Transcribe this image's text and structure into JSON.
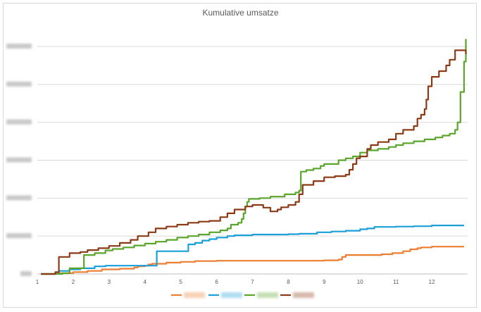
{
  "chart_data": {
    "type": "line",
    "title": "Kumulative umsatze",
    "xlabel": "",
    "ylabel": "",
    "xlim": [
      1,
      13
    ],
    "xticks": [
      "1",
      "2",
      "3",
      "4",
      "5",
      "6",
      "7",
      "8",
      "9",
      "10",
      "11",
      "12"
    ],
    "ylim": [
      0,
      6
    ],
    "ytick_count": 7,
    "grid": "horizontal",
    "legend_position": "bottom",
    "series": [
      {
        "color": "#ed7d31",
        "points": [
          [
            1.1,
            0
          ],
          [
            1.5,
            0.02
          ],
          [
            2.0,
            0.05
          ],
          [
            2.4,
            0.08
          ],
          [
            2.8,
            0.12
          ],
          [
            3.3,
            0.14
          ],
          [
            3.7,
            0.17
          ],
          [
            3.8,
            0.2
          ],
          [
            4.0,
            0.22
          ],
          [
            4.1,
            0.25
          ],
          [
            4.2,
            0.27
          ],
          [
            4.6,
            0.3
          ],
          [
            5.0,
            0.32
          ],
          [
            5.4,
            0.34
          ],
          [
            6.0,
            0.35
          ],
          [
            7.0,
            0.35
          ],
          [
            8.0,
            0.35
          ],
          [
            9.0,
            0.36
          ],
          [
            9.4,
            0.38
          ],
          [
            9.5,
            0.45
          ],
          [
            9.6,
            0.5
          ],
          [
            10.0,
            0.5
          ],
          [
            10.6,
            0.52
          ],
          [
            10.9,
            0.55
          ],
          [
            11.2,
            0.6
          ],
          [
            11.4,
            0.65
          ],
          [
            11.6,
            0.68
          ],
          [
            11.7,
            0.7
          ],
          [
            12.0,
            0.72
          ],
          [
            12.9,
            0.72
          ]
        ]
      },
      {
        "color": "#1a9fd8",
        "points": [
          [
            1.1,
            0
          ],
          [
            1.6,
            0.08
          ],
          [
            1.9,
            0.12
          ],
          [
            2.2,
            0.15
          ],
          [
            2.6,
            0.2
          ],
          [
            2.9,
            0.22
          ],
          [
            3.1,
            0.22
          ],
          [
            4.0,
            0.22
          ],
          [
            4.3,
            0.22
          ],
          [
            4.33,
            0.6
          ],
          [
            5.2,
            0.6
          ],
          [
            5.21,
            0.78
          ],
          [
            5.4,
            0.82
          ],
          [
            5.6,
            0.88
          ],
          [
            5.8,
            0.92
          ],
          [
            6.0,
            0.96
          ],
          [
            6.3,
            1.0
          ],
          [
            6.5,
            1.02
          ],
          [
            6.9,
            1.02
          ],
          [
            7.0,
            1.04
          ],
          [
            7.5,
            1.04
          ],
          [
            8.0,
            1.05
          ],
          [
            8.3,
            1.06
          ],
          [
            8.8,
            1.1
          ],
          [
            9.2,
            1.12
          ],
          [
            9.6,
            1.14
          ],
          [
            10.0,
            1.18
          ],
          [
            10.2,
            1.2
          ],
          [
            10.4,
            1.24
          ],
          [
            10.6,
            1.24
          ],
          [
            11.0,
            1.25
          ],
          [
            11.5,
            1.26
          ],
          [
            12.0,
            1.28
          ],
          [
            12.9,
            1.28
          ]
        ]
      },
      {
        "color": "#5ba52b",
        "points": [
          [
            1.1,
            0
          ],
          [
            1.7,
            0.02
          ],
          [
            1.9,
            0.15
          ],
          [
            2.3,
            0.5
          ],
          [
            2.6,
            0.55
          ],
          [
            2.9,
            0.62
          ],
          [
            3.1,
            0.66
          ],
          [
            3.4,
            0.7
          ],
          [
            3.7,
            0.75
          ],
          [
            4.0,
            0.8
          ],
          [
            4.3,
            0.85
          ],
          [
            4.6,
            0.9
          ],
          [
            4.9,
            0.96
          ],
          [
            5.2,
            1.0
          ],
          [
            5.5,
            1.04
          ],
          [
            5.8,
            1.1
          ],
          [
            6.1,
            1.15
          ],
          [
            6.3,
            1.2
          ],
          [
            6.4,
            1.3
          ],
          [
            6.6,
            1.35
          ],
          [
            6.7,
            1.45
          ],
          [
            6.75,
            1.6
          ],
          [
            6.8,
            1.78
          ],
          [
            6.85,
            1.9
          ],
          [
            6.9,
            1.98
          ],
          [
            7.2,
            2.0
          ],
          [
            7.5,
            2.04
          ],
          [
            7.9,
            2.1
          ],
          [
            8.2,
            2.15
          ],
          [
            8.3,
            2.2
          ],
          [
            8.35,
            2.7
          ],
          [
            8.5,
            2.74
          ],
          [
            8.7,
            2.78
          ],
          [
            8.9,
            2.85
          ],
          [
            9.0,
            2.9
          ],
          [
            9.4,
            3.0
          ],
          [
            9.6,
            3.05
          ],
          [
            9.8,
            3.1
          ],
          [
            10.0,
            3.2
          ],
          [
            10.2,
            3.26
          ],
          [
            10.5,
            3.3
          ],
          [
            10.8,
            3.35
          ],
          [
            11.0,
            3.4
          ],
          [
            11.2,
            3.45
          ],
          [
            11.5,
            3.5
          ],
          [
            11.8,
            3.55
          ],
          [
            12.1,
            3.6
          ],
          [
            12.3,
            3.65
          ],
          [
            12.5,
            3.7
          ],
          [
            12.65,
            3.8
          ],
          [
            12.72,
            4.0
          ],
          [
            12.8,
            4.8
          ],
          [
            12.9,
            5.6
          ],
          [
            12.95,
            6.2
          ]
        ]
      },
      {
        "color": "#8b3a15",
        "points": [
          [
            1.1,
            0
          ],
          [
            1.5,
            0.05
          ],
          [
            1.6,
            0.45
          ],
          [
            1.9,
            0.55
          ],
          [
            2.2,
            0.58
          ],
          [
            2.4,
            0.63
          ],
          [
            2.7,
            0.68
          ],
          [
            3.0,
            0.74
          ],
          [
            3.3,
            0.82
          ],
          [
            3.6,
            0.9
          ],
          [
            3.8,
            1.0
          ],
          [
            4.1,
            1.1
          ],
          [
            4.3,
            1.2
          ],
          [
            4.6,
            1.25
          ],
          [
            4.9,
            1.3
          ],
          [
            5.2,
            1.35
          ],
          [
            5.5,
            1.38
          ],
          [
            5.8,
            1.4
          ],
          [
            6.1,
            1.5
          ],
          [
            6.3,
            1.6
          ],
          [
            6.5,
            1.7
          ],
          [
            6.8,
            1.78
          ],
          [
            7.0,
            1.82
          ],
          [
            7.3,
            1.75
          ],
          [
            7.5,
            1.65
          ],
          [
            7.7,
            1.7
          ],
          [
            7.8,
            1.76
          ],
          [
            8.0,
            1.82
          ],
          [
            8.2,
            1.9
          ],
          [
            8.3,
            2.1
          ],
          [
            8.4,
            2.35
          ],
          [
            8.7,
            2.45
          ],
          [
            9.0,
            2.55
          ],
          [
            9.3,
            2.58
          ],
          [
            9.6,
            2.62
          ],
          [
            9.7,
            2.75
          ],
          [
            9.8,
            2.9
          ],
          [
            9.9,
            3.05
          ],
          [
            10.0,
            3.1
          ],
          [
            10.2,
            3.3
          ],
          [
            10.3,
            3.4
          ],
          [
            10.5,
            3.48
          ],
          [
            10.8,
            3.55
          ],
          [
            11.0,
            3.7
          ],
          [
            11.2,
            3.8
          ],
          [
            11.5,
            3.9
          ],
          [
            11.6,
            4.1
          ],
          [
            11.7,
            4.2
          ],
          [
            11.8,
            4.35
          ],
          [
            11.85,
            4.6
          ],
          [
            11.9,
            4.95
          ],
          [
            12.0,
            5.2
          ],
          [
            12.2,
            5.35
          ],
          [
            12.4,
            5.5
          ],
          [
            12.5,
            5.65
          ],
          [
            12.65,
            5.9
          ],
          [
            12.9,
            5.9
          ],
          [
            12.95,
            5.8
          ]
        ]
      }
    ]
  }
}
